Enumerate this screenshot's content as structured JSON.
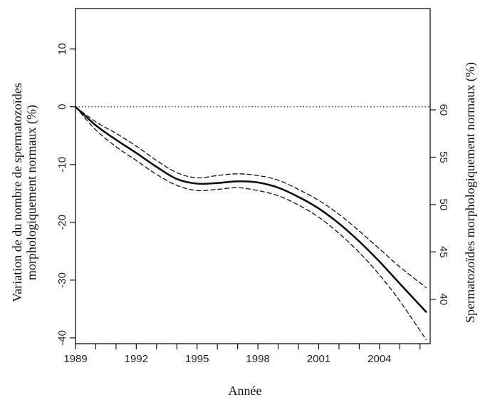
{
  "chart_data": {
    "type": "line",
    "title": "",
    "xlabel": "Année",
    "ylabel_left": [
      "Variation de du nombre de spermatozoïdes",
      "morphologiquement normaux (%)"
    ],
    "ylabel_right": "Spermatozoïdes morphologiquement normaux (%)",
    "xlim": [
      1989,
      2006.5
    ],
    "ylim_left": [
      -41,
      17
    ],
    "ylim_right": [
      35.3,
      70.7
    ],
    "x_ticks": [
      1989,
      1992,
      1995,
      1998,
      2001,
      2004
    ],
    "x_minor_ticks": [
      1989,
      1990,
      1991,
      1992,
      1993,
      1994,
      1995,
      1996,
      1997,
      1998,
      1999,
      2000,
      2001,
      2002,
      2003,
      2004,
      2005,
      2006
    ],
    "y_ticks_left": [
      10,
      0,
      -10,
      -20,
      -30,
      -40
    ],
    "y_ticks_right": [
      60,
      55,
      50,
      45,
      40
    ],
    "reference_line": {
      "y": 0,
      "style": "dotted"
    },
    "series": [
      {
        "style": "solid",
        "x": [
          1989,
          1990,
          1991,
          1992,
          1993,
          1994,
          1995,
          1996,
          1997,
          1998,
          1999,
          2000,
          2001,
          2002,
          2003,
          2004,
          2005,
          2006.3
        ],
        "y": [
          0,
          -3.2,
          -5.7,
          -8.0,
          -10.4,
          -12.5,
          -13.3,
          -13.2,
          -12.9,
          -13.1,
          -14.0,
          -15.6,
          -17.6,
          -20.2,
          -23.3,
          -26.8,
          -30.6,
          -35.5
        ]
      },
      {
        "style": "dashed",
        "x": [
          1989,
          1990,
          1991,
          1992,
          1993,
          1994,
          1995,
          1996,
          1997,
          1998,
          1999,
          2000,
          2001,
          2002,
          2003,
          2004,
          2005,
          2006.3
        ],
        "y": [
          0,
          -2.6,
          -4.6,
          -6.8,
          -9.3,
          -11.4,
          -12.3,
          -11.9,
          -11.6,
          -11.9,
          -12.7,
          -14.3,
          -16.2,
          -18.6,
          -21.5,
          -24.6,
          -27.7,
          -31.3
        ]
      },
      {
        "style": "dashed",
        "x": [
          1989,
          1990,
          1991,
          1992,
          1993,
          1994,
          1995,
          1996,
          1997,
          1998,
          1999,
          2000,
          2001,
          2002,
          2003,
          2004,
          2005,
          2006.3
        ],
        "y": [
          0,
          -4.0,
          -6.9,
          -9.3,
          -11.7,
          -13.6,
          -14.5,
          -14.3,
          -14.0,
          -14.5,
          -15.4,
          -17.0,
          -19.1,
          -21.9,
          -25.2,
          -29.1,
          -33.6,
          -40.3
        ]
      }
    ]
  }
}
